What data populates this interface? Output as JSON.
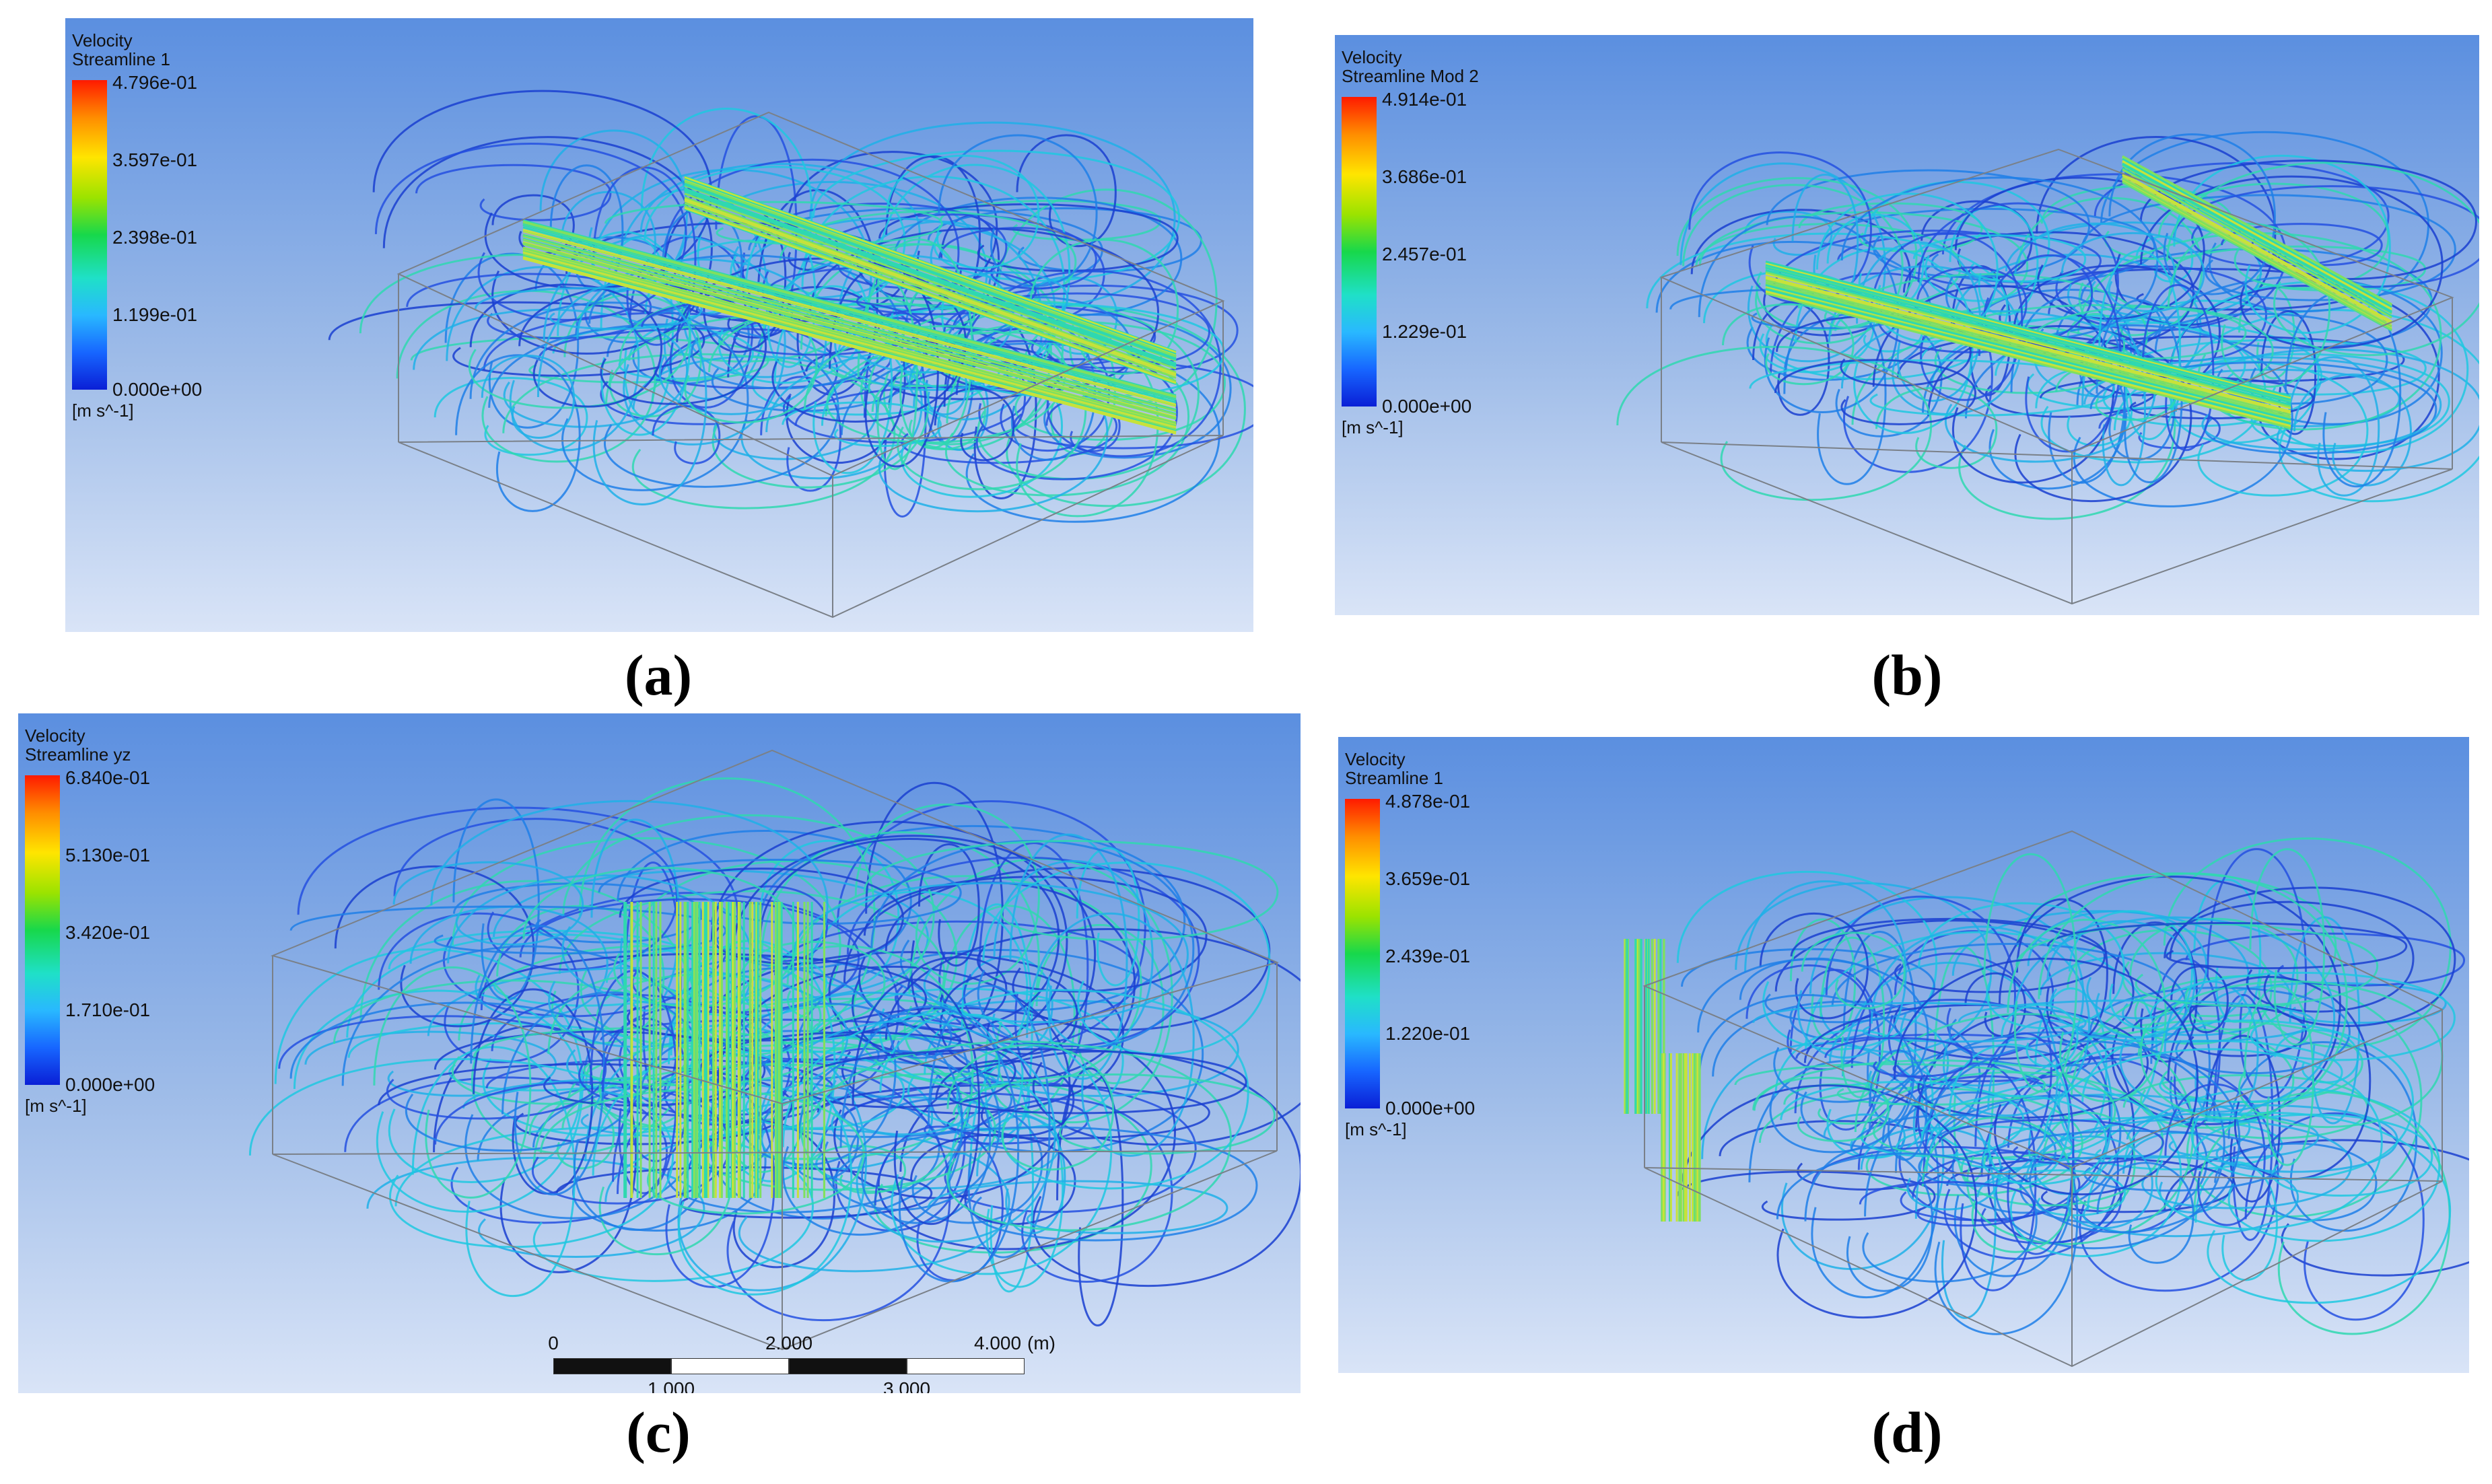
{
  "panels": [
    {
      "id": "a",
      "caption": "(a)",
      "legend": {
        "title": "Velocity",
        "subtitle": "Streamline 1",
        "ticks": [
          "4.796e-01",
          "3.597e-01",
          "2.398e-01",
          "1.199e-01",
          "0.000e+00"
        ],
        "unit": "[m s^-1]"
      }
    },
    {
      "id": "b",
      "caption": "(b)",
      "legend": {
        "title": "Velocity",
        "subtitle": "Streamline Mod 2",
        "ticks": [
          "4.914e-01",
          "3.686e-01",
          "2.457e-01",
          "1.229e-01",
          "0.000e+00"
        ],
        "unit": "[m s^-1]"
      }
    },
    {
      "id": "c",
      "caption": "(c)",
      "legend": {
        "title": "Velocity",
        "subtitle": "Streamline yz",
        "ticks": [
          "6.840e-01",
          "5.130e-01",
          "3.420e-01",
          "1.710e-01",
          "0.000e+00"
        ],
        "unit": "[m s^-1]"
      },
      "scale_bar": {
        "top_labels": [
          "0",
          "2.000",
          "4.000"
        ],
        "unit": "(m)",
        "bottom_labels": [
          "1.000",
          "3.000"
        ]
      }
    },
    {
      "id": "d",
      "caption": "(d)",
      "legend": {
        "title": "Velocity",
        "subtitle": "Streamline 1",
        "ticks": [
          "4.878e-01",
          "3.659e-01",
          "2.439e-01",
          "1.220e-01",
          "0.000e+00"
        ],
        "unit": "[m s^-1]"
      }
    }
  ],
  "colors": {
    "background_top": "#5b8fe0",
    "background_bottom": "#d9e4f7",
    "streamline_low": "#1a3fd0",
    "streamline_mid": "#1fc8e0",
    "streamline_high": "#9be300",
    "streamline_peak": "#ff3b00"
  }
}
